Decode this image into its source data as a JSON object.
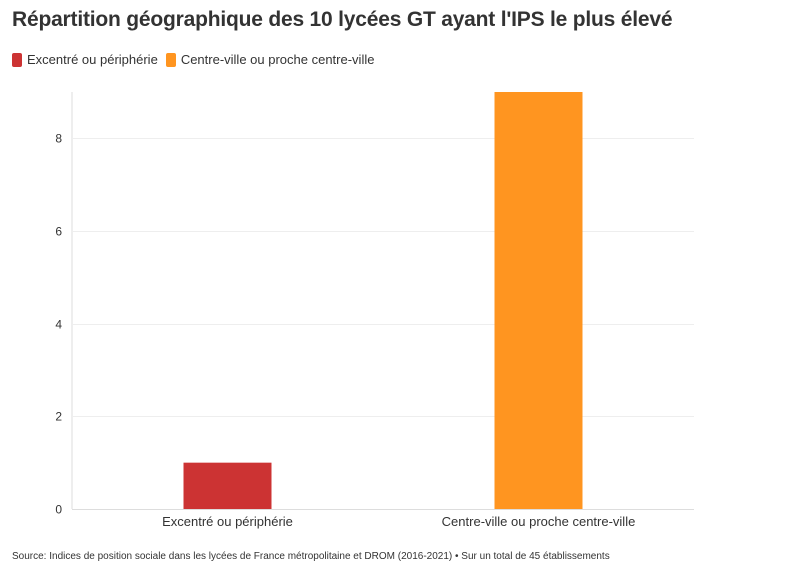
{
  "title": "Répartition géographique des 10 lycées GT ayant l'IPS le plus élevé",
  "legend": [
    {
      "label": "Excentré ou périphérie",
      "color": "#cc3333"
    },
    {
      "label": "Centre-ville ou proche centre-ville",
      "color": "#ff9520"
    }
  ],
  "source": "Source: Indices de position sociale dans les lycées de France métropolitaine et DROM (2016-2021) • Sur un total de 45 établissements",
  "chart_data": {
    "type": "bar",
    "categories": [
      "Excentré ou périphérie",
      "Centre-ville ou proche centre-ville"
    ],
    "values": [
      1,
      9
    ],
    "colors": [
      "#cc3333",
      "#ff9520"
    ],
    "ylim": [
      0,
      9
    ],
    "yticks": [
      0,
      2,
      4,
      6,
      8
    ],
    "grid": true,
    "legend_position": "top-left"
  }
}
